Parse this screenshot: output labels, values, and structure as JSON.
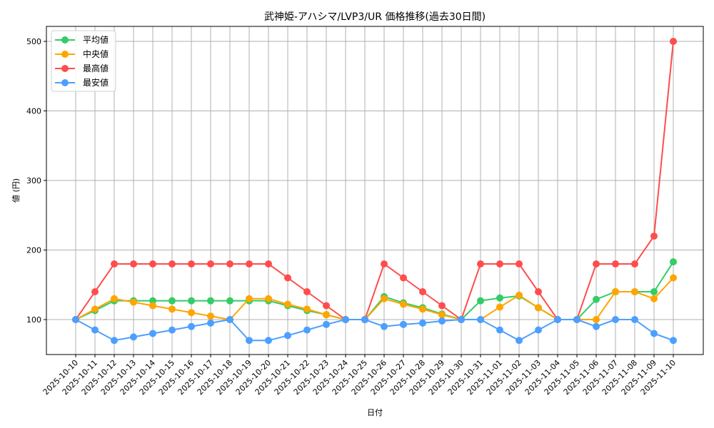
{
  "chart_data": {
    "type": "line",
    "title": "武神姫-アハシマ/LVP3/UR 価格推移(過去30日間)",
    "xlabel": "日付",
    "ylabel": "値 (円)",
    "ylim": [
      46,
      522
    ],
    "yticks": [
      100,
      200,
      300,
      400,
      500
    ],
    "grid": true,
    "legend_position": "upper left",
    "categories": [
      "2025-10-10",
      "2025-10-11",
      "2025-10-12",
      "2025-10-13",
      "2025-10-14",
      "2025-10-15",
      "2025-10-16",
      "2025-10-17",
      "2025-10-18",
      "2025-10-19",
      "2025-10-20",
      "2025-10-21",
      "2025-10-22",
      "2025-10-23",
      "2025-10-24",
      "2025-10-25",
      "2025-10-26",
      "2025-10-27",
      "2025-10-28",
      "2025-10-29",
      "2025-10-30",
      "2025-10-31",
      "2025-11-01",
      "2025-11-02",
      "2025-11-03",
      "2025-11-04",
      "2025-11-05",
      "2025-11-06",
      "2025-11-07",
      "2025-11-08",
      "2025-11-09",
      "2025-11-10"
    ],
    "series": [
      {
        "name": "平均値",
        "color": "#33cc66",
        "values": [
          100,
          113,
          127,
          127,
          127,
          127,
          127,
          127,
          127,
          127,
          127,
          120,
          113,
          107,
          100,
          100,
          133,
          124,
          117,
          108,
          100,
          127,
          131,
          134,
          117,
          100,
          100,
          129,
          140,
          140,
          140,
          183
        ]
      },
      {
        "name": "中央値",
        "color": "#ffa500",
        "values": [
          100,
          115,
          130,
          125,
          120,
          115,
          110,
          105,
          100,
          130,
          130,
          122,
          115,
          107,
          100,
          100,
          130,
          122,
          115,
          107,
          100,
          100,
          118,
          135,
          117,
          100,
          100,
          100,
          140,
          140,
          130,
          160
        ]
      },
      {
        "name": "最高値",
        "color": "#ff4d4d",
        "values": [
          100,
          140,
          180,
          180,
          180,
          180,
          180,
          180,
          180,
          180,
          180,
          160,
          140,
          120,
          100,
          100,
          180,
          160,
          140,
          120,
          100,
          180,
          180,
          180,
          140,
          100,
          100,
          180,
          180,
          180,
          220,
          500
        ]
      },
      {
        "name": "最安値",
        "color": "#4d9fff",
        "values": [
          100,
          85,
          70,
          75,
          80,
          85,
          90,
          95,
          100,
          70,
          70,
          77,
          85,
          93,
          100,
          100,
          90,
          93,
          95,
          98,
          100,
          100,
          85,
          70,
          85,
          100,
          100,
          90,
          100,
          100,
          80,
          70
        ]
      }
    ]
  }
}
